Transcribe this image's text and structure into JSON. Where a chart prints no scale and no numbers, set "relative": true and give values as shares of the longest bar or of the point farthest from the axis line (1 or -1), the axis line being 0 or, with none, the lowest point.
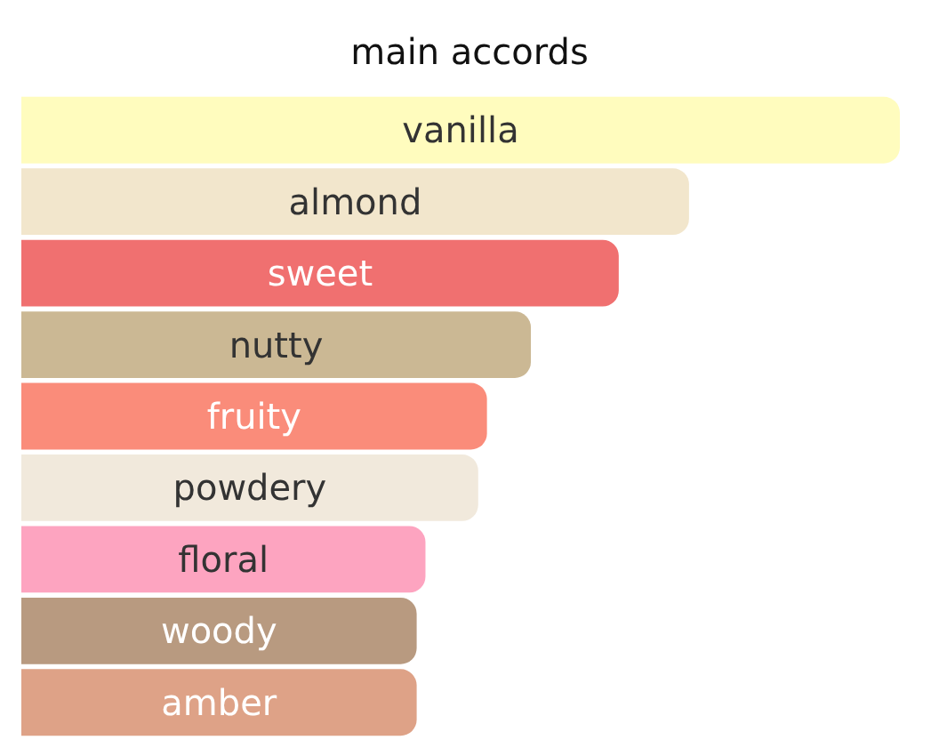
{
  "chart_data": {
    "type": "bar",
    "title": "main accords",
    "orientation": "horizontal",
    "relative": true,
    "categories": [
      "vanilla",
      "almond",
      "sweet",
      "nutty",
      "fruity",
      "powdery",
      "floral",
      "woody",
      "amber"
    ],
    "values": [
      1,
      0.76,
      0.68,
      0.58,
      0.53,
      0.52,
      0.46,
      0.45,
      0.45
    ],
    "colors": [
      "#fffcbe",
      "#f2e6cc",
      "#f07070",
      "#cbb894",
      "#fa8c7a",
      "#f1e9dc",
      "#fda4c0",
      "#b89a80",
      "#dea287"
    ]
  }
}
